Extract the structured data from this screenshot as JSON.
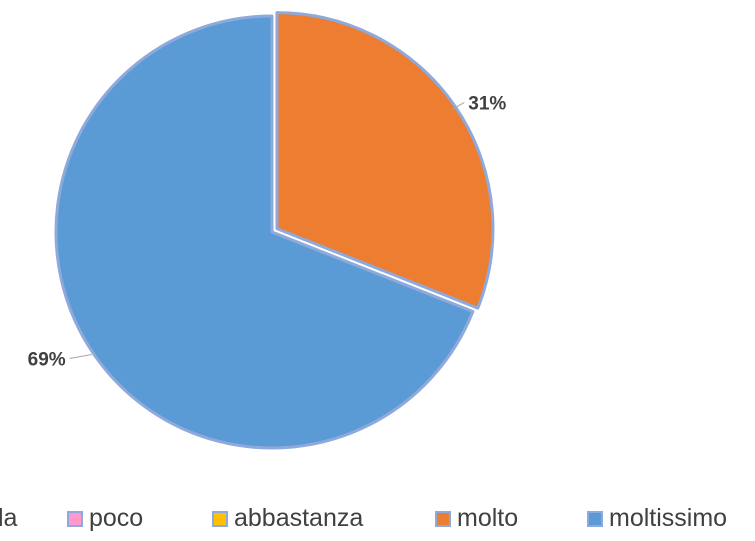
{
  "chart_data": {
    "type": "pie",
    "title": "",
    "categories": [
      "per nulla",
      "poco",
      "abbastanza",
      "molto",
      "moltissimo"
    ],
    "values": [
      0,
      0,
      0,
      31,
      69
    ],
    "data_labels": [
      "",
      "",
      "",
      "31%",
      "69%"
    ],
    "colors": [
      "#4472C4",
      "#FF99CC",
      "#FFC000",
      "#ED7D31",
      "#5B9BD5"
    ],
    "legend_position": "bottom",
    "legend_visible_text": [
      "la",
      "poco",
      "abbastanza",
      "molto",
      "moltissimo"
    ],
    "slice_border_color": "#8EA9DB",
    "leader_line_color": "#A6A6A6"
  }
}
